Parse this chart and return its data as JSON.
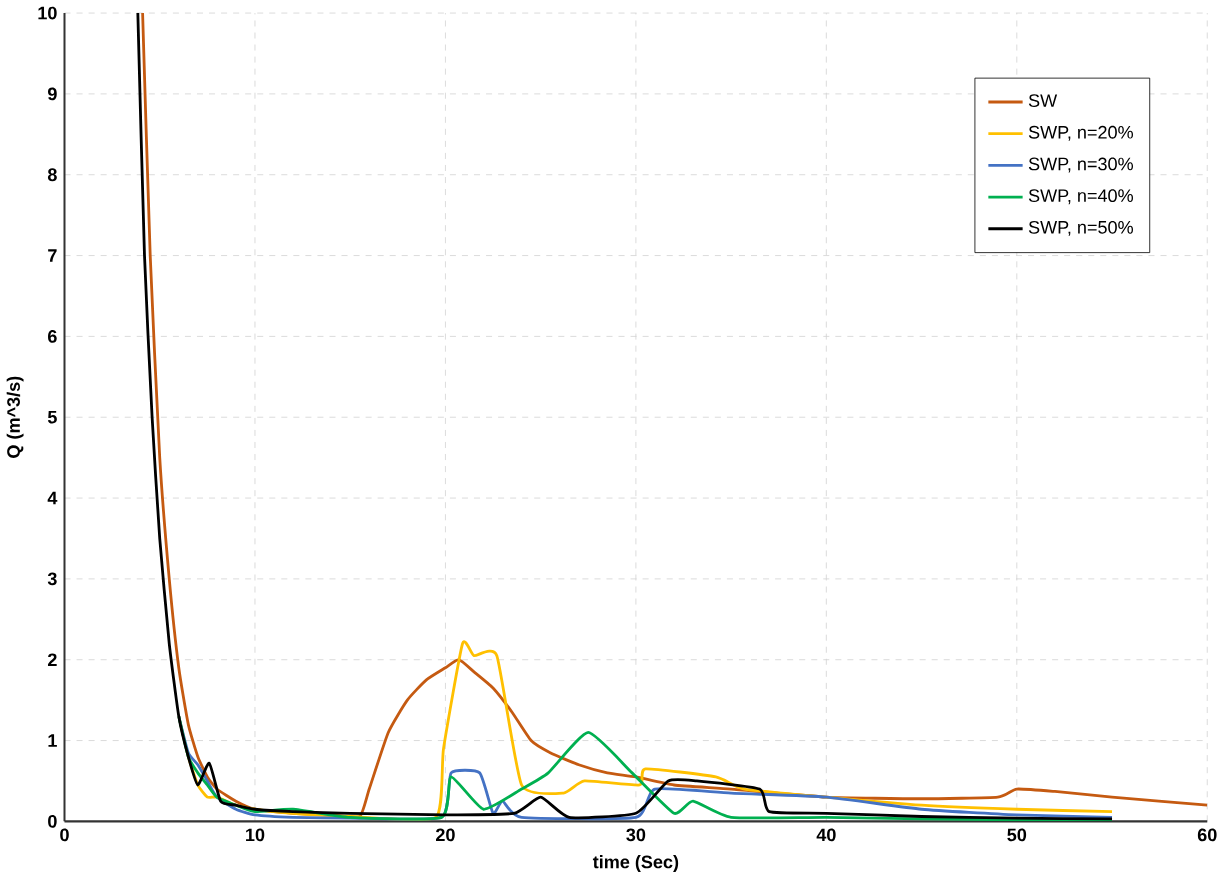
{
  "chart_data": {
    "type": "line",
    "xlabel": "time (Sec)",
    "ylabel": "Q (m^3/s)",
    "xlim": [
      0,
      60
    ],
    "ylim": [
      0,
      10
    ],
    "xticks": [
      0,
      10,
      20,
      30,
      40,
      50,
      60
    ],
    "yticks": [
      0,
      1,
      2,
      3,
      4,
      5,
      6,
      7,
      8,
      9,
      10
    ],
    "grid": true,
    "legend": "top right",
    "marker": "none",
    "line_style": "solid",
    "series": [
      {
        "name": "SW",
        "color": "#c55a11",
        "x": [
          4.1,
          4.5,
          5,
          5.5,
          6,
          6.5,
          7,
          7.5,
          8,
          9,
          10,
          12,
          14,
          15.5,
          16,
          17,
          18,
          19,
          20,
          20.7,
          21.5,
          22.5,
          23.5,
          24.5,
          25.5,
          27,
          28.5,
          30,
          32,
          35,
          40,
          45,
          49,
          50,
          52,
          55,
          60
        ],
        "values": [
          10,
          7,
          4.5,
          3,
          1.9,
          1.2,
          0.8,
          0.55,
          0.4,
          0.25,
          0.15,
          0.1,
          0.08,
          0.06,
          0.4,
          1.1,
          1.5,
          1.75,
          1.9,
          2.0,
          1.85,
          1.65,
          1.35,
          1.0,
          0.85,
          0.7,
          0.6,
          0.55,
          0.45,
          0.4,
          0.3,
          0.28,
          0.3,
          0.4,
          0.37,
          0.3,
          0.2
        ]
      },
      {
        "name": "SWP, n=20%",
        "color": "#ffc000",
        "x": [
          6,
          6.5,
          7,
          7.5,
          8,
          9,
          10,
          12,
          15,
          19.5,
          19.9,
          20.9,
          21.5,
          22.7,
          24,
          26.2,
          27.3,
          30.2,
          30.5,
          34.2,
          35.7,
          40,
          45,
          50,
          55
        ],
        "values": [
          1.3,
          0.8,
          0.45,
          0.3,
          0.3,
          0.2,
          0.15,
          0.1,
          0.06,
          0.05,
          0.9,
          2.2,
          2.05,
          2.05,
          0.45,
          0.35,
          0.5,
          0.45,
          0.65,
          0.55,
          0.4,
          0.3,
          0.2,
          0.15,
          0.12
        ]
      },
      {
        "name": "SWP, n=30%",
        "color": "#4472c4",
        "x": [
          6,
          6.5,
          7,
          7.5,
          8,
          9,
          10,
          12,
          15,
          19.8,
          20.3,
          21.8,
          22.5,
          23,
          24,
          30,
          31,
          35,
          40,
          45,
          50,
          55
        ],
        "values": [
          1.3,
          0.85,
          0.7,
          0.5,
          0.3,
          0.15,
          0.08,
          0.05,
          0.04,
          0.05,
          0.6,
          0.6,
          0.1,
          0.25,
          0.05,
          0.05,
          0.4,
          0.35,
          0.3,
          0.15,
          0.08,
          0.05
        ]
      },
      {
        "name": "SWP, n=40%",
        "color": "#00b050",
        "x": [
          6,
          6.5,
          7,
          7.5,
          8,
          9,
          10,
          12,
          15,
          19.8,
          20.3,
          22,
          24,
          25.4,
          27.5,
          29.8,
          32,
          33,
          35,
          40,
          45,
          50,
          55
        ],
        "values": [
          1.3,
          0.8,
          0.6,
          0.45,
          0.3,
          0.2,
          0.12,
          0.15,
          0.05,
          0.05,
          0.55,
          0.15,
          0.4,
          0.6,
          1.1,
          0.6,
          0.1,
          0.25,
          0.05,
          0.05,
          0.03,
          0.02,
          0.02
        ]
      },
      {
        "name": "SWP, n=50%",
        "color": "#000000",
        "x": [
          3.85,
          4.2,
          4.6,
          5,
          5.5,
          6,
          6.5,
          7,
          7.6,
          8.2,
          9,
          10,
          12,
          15,
          20,
          23.6,
          25,
          26.5,
          30,
          31.7,
          33.2,
          36.5,
          37,
          40,
          45,
          50,
          55
        ],
        "values": [
          10,
          7,
          5,
          3.5,
          2.2,
          1.3,
          0.8,
          0.45,
          0.72,
          0.25,
          0.2,
          0.15,
          0.12,
          0.1,
          0.08,
          0.1,
          0.3,
          0.05,
          0.1,
          0.5,
          0.5,
          0.4,
          0.12,
          0.1,
          0.06,
          0.04,
          0.03
        ]
      }
    ]
  }
}
